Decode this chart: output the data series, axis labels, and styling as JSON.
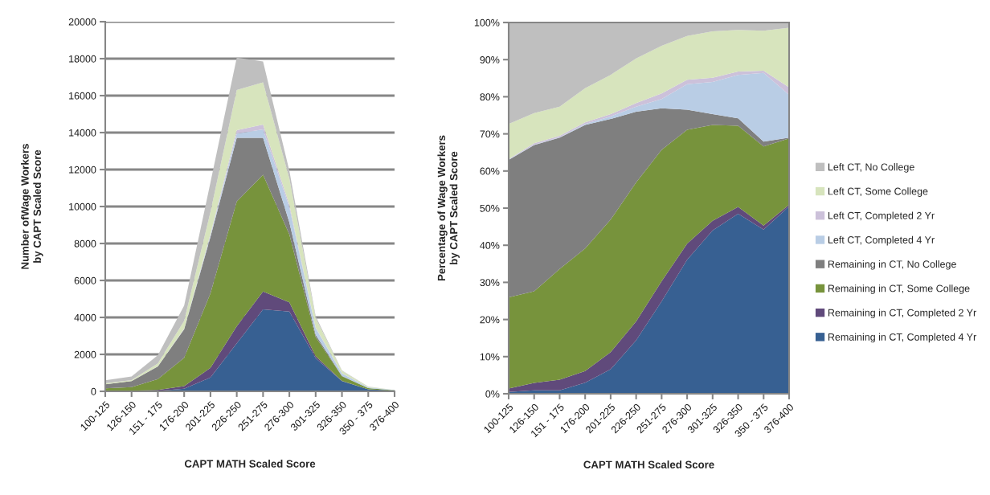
{
  "chart_data": [
    {
      "type": "area",
      "stacked": true,
      "xlabel": "CAPT MATH Scaled Score",
      "ylabel": "Number ofWage Workers\nby CAPT Scaled Score",
      "categories": [
        "100-125",
        "126-150",
        "151 - 175",
        "176-200",
        "201-225",
        "226-250",
        "251-275",
        "276-300",
        "301-325",
        "326-350",
        "350 - 375",
        "376-400"
      ],
      "series": [
        {
          "color": "#376092",
          "values": [
            0,
            10,
            20,
            140,
            750,
            2600,
            4440,
            4310,
            1790,
            550,
            110,
            40
          ]
        },
        {
          "color": "#604a7b",
          "values": [
            10,
            20,
            60,
            140,
            520,
            920,
            960,
            510,
            110,
            20,
            0,
            0
          ]
        },
        {
          "color": "#77933c",
          "values": [
            150,
            200,
            580,
            1530,
            4030,
            6750,
            6320,
            3670,
            1050,
            250,
            60,
            10
          ]
        },
        {
          "color": "#7f7f7f",
          "values": [
            220,
            320,
            690,
            1550,
            3060,
            3450,
            2000,
            650,
            120,
            20,
            0,
            0
          ]
        },
        {
          "color": "#b9cde5",
          "values": [
            0,
            0,
            0,
            10,
            80,
            230,
            450,
            820,
            350,
            130,
            50,
            10
          ]
        },
        {
          "color": "#ccc1da",
          "values": [
            0,
            0,
            10,
            20,
            70,
            180,
            270,
            140,
            40,
            10,
            0,
            0
          ]
        },
        {
          "color": "#d7e4bd",
          "values": [
            60,
            60,
            150,
            430,
            1200,
            2170,
            2280,
            1410,
            510,
            130,
            30,
            10
          ]
        },
        {
          "color": "#bfbfbf",
          "values": [
            160,
            190,
            450,
            820,
            1590,
            1750,
            1130,
            430,
            100,
            20,
            10,
            0
          ]
        }
      ],
      "ylim": [
        0,
        20000
      ],
      "yticks": [
        0,
        2000,
        4000,
        6000,
        8000,
        10000,
        12000,
        14000,
        16000,
        18000,
        20000
      ],
      "grid": "y"
    },
    {
      "type": "area",
      "stacked": true,
      "xlabel": "CAPT MATH Scaled Score",
      "ylabel": "Percentage of Wage Workers\nby CAPT Scaled Score",
      "categories": [
        "100-125",
        "126-150",
        "151 - 175",
        "176-200",
        "201-225",
        "226-250",
        "251-275",
        "276-300",
        "301-325",
        "326-350",
        "350 - 375",
        "376-400"
      ],
      "series": [
        {
          "name": "Remaining in CT, Completed 4 Yr",
          "color": "#376092",
          "values": [
            0.5,
            0.9,
            0.9,
            3.0,
            6.6,
            14.4,
            24.9,
            36.1,
            44.0,
            48.5,
            44.2,
            50.5
          ]
        },
        {
          "name": "Remaining in CT, Completed 2 Yr",
          "color": "#604a7b",
          "values": [
            0.9,
            2.0,
            2.9,
            3.1,
            4.6,
            5.1,
            5.4,
            4.3,
            2.6,
            1.8,
            1.1,
            0.4
          ]
        },
        {
          "name": "Remaining in CT, Some College",
          "color": "#77933c",
          "values": [
            24.6,
            24.7,
            29.8,
            33.0,
            35.7,
            37.4,
            35.4,
            30.7,
            25.8,
            21.9,
            21.3,
            17.9
          ]
        },
        {
          "name": "Remaining in CT, No College",
          "color": "#7f7f7f",
          "values": [
            37.0,
            39.4,
            35.4,
            33.3,
            27.1,
            19.1,
            11.2,
            5.4,
            2.9,
            2.0,
            1.3,
            0.2
          ]
        },
        {
          "name": "Left CT, Completed 4 Yr",
          "color": "#b9cde5",
          "values": [
            0.1,
            0.1,
            0.1,
            0.3,
            0.7,
            1.3,
            2.5,
            6.9,
            8.7,
            11.7,
            18.5,
            11.5
          ]
        },
        {
          "name": "Left CT, Completed 2 Yr",
          "color": "#ccc1da",
          "values": [
            0.1,
            0.4,
            0.4,
            0.4,
            0.6,
            1.0,
            1.5,
            1.2,
            1.1,
            0.9,
            0.6,
            2.0
          ]
        },
        {
          "name": "Left CT, Some College",
          "color": "#d7e4bd",
          "values": [
            9.5,
            8.1,
            7.8,
            9.2,
            10.6,
            12.0,
            12.8,
            11.8,
            12.5,
            11.2,
            10.8,
            16.1
          ]
        },
        {
          "name": "Left CT, No College",
          "color": "#bfbfbf",
          "values": [
            27.3,
            24.4,
            22.7,
            17.7,
            14.1,
            9.7,
            6.3,
            3.6,
            2.4,
            2.0,
            2.2,
            1.4
          ]
        }
      ],
      "ylim": [
        0,
        100
      ],
      "yticks": [
        {
          "value": 0,
          "label": "0%"
        },
        {
          "value": 10,
          "label": "10%"
        },
        {
          "value": 20,
          "label": "20%"
        },
        {
          "value": 30,
          "label": "30%"
        },
        {
          "value": 40,
          "label": "40%"
        },
        {
          "value": 50,
          "label": "50%"
        },
        {
          "value": 60,
          "label": "60%"
        },
        {
          "value": 70,
          "label": "70%"
        },
        {
          "value": 80,
          "label": "80%"
        },
        {
          "value": 90,
          "label": "90%"
        },
        {
          "value": 100,
          "label": "100%"
        }
      ],
      "legend": "right"
    }
  ]
}
